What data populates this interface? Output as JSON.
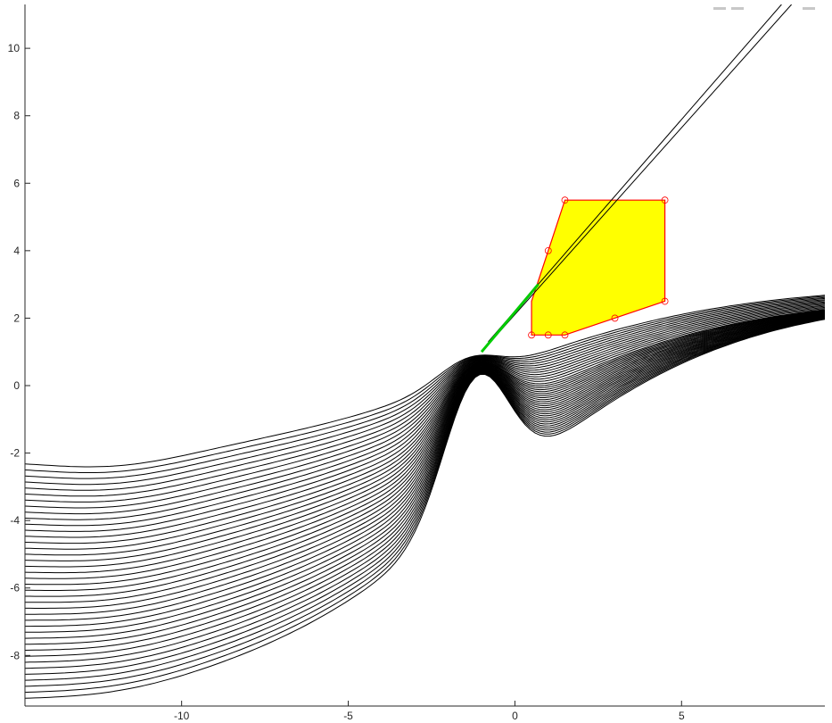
{
  "chart_data": {
    "type": "line",
    "title": "",
    "xlabel": "",
    "ylabel": "",
    "xlim": [
      -14.7,
      9.3
    ],
    "ylim": [
      -9.5,
      11.3
    ],
    "xticks": [
      -10,
      -5,
      0,
      5
    ],
    "xtick_labels": [
      "-10",
      "-5",
      "0",
      "5"
    ],
    "yticks": [
      -8,
      -6,
      -4,
      -2,
      0,
      2,
      4,
      6,
      8,
      10
    ],
    "ytick_labels": [
      "-8",
      "-6",
      "-4",
      "-2",
      "0",
      "2",
      "4",
      "6",
      "8",
      "10"
    ],
    "grid": false,
    "legend": "none",
    "colors": {
      "curves": "#000000",
      "polygon_fill": "#ffff00",
      "polygon_edge": "#ff0000",
      "vertex_marker": "#ff0000",
      "path": "#00cc00",
      "axes": "#262626"
    },
    "polygon": {
      "vertices": [
        [
          1.5,
          5.5
        ],
        [
          4.5,
          5.5
        ],
        [
          4.5,
          2.5
        ],
        [
          1.5,
          1.5
        ],
        [
          0.5,
          1.5
        ],
        [
          0.5,
          2.5
        ],
        [
          1.0,
          4.0
        ]
      ]
    },
    "vertex_markers": [
      [
        1.5,
        5.5
      ],
      [
        4.5,
        5.5
      ],
      [
        4.5,
        2.5
      ],
      [
        1.5,
        1.5
      ],
      [
        0.5,
        1.5
      ],
      [
        1.0,
        4.0
      ],
      [
        3.0,
        2.0
      ],
      [
        1.0,
        1.5
      ]
    ],
    "path": [
      [
        -1.0,
        1.0
      ],
      [
        0.7,
        3.0
      ]
    ],
    "upper_ray": [
      [
        -1.0,
        1.0
      ],
      [
        8.3,
        11.3
      ]
    ],
    "upper_ray_2": [
      [
        -0.8,
        1.3
      ],
      [
        8.0,
        11.3
      ]
    ],
    "lower_family": {
      "x_start": -14.7,
      "x_end": 9.3,
      "y_end_min": 2.7,
      "y_end_max": 3.0,
      "y_start_min": -9.5,
      "y_start_max": -2.3,
      "count": 40
    }
  },
  "toolbar": {
    "icons": [
      "rotate-icon",
      "pan-icon",
      "zoom-icon"
    ]
  }
}
